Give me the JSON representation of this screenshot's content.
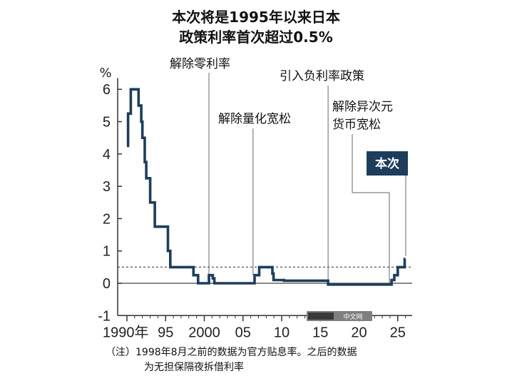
{
  "header": {
    "title_line1": "本次将是1995年以来日本",
    "title_line2": "政策利率首次超过0.5%"
  },
  "footnote": {
    "line1": "（注）1998年8月之前的数据为官方贴息率。之后的数据",
    "line2": "为无担保隔夜拆借利率"
  },
  "watermark": {
    "text": "中文网"
  },
  "colors": {
    "line": "#1e3d5c",
    "badge": "#1e3d5c",
    "axis": "#333333",
    "dotted": "#555555"
  },
  "chart_data": {
    "type": "line",
    "title": "本次将是1995年以来日本政策利率首次超过0.5%",
    "ylabel": "%",
    "xlabel": "",
    "ylim": [
      -1,
      6
    ],
    "xlim": [
      1989,
      2026
    ],
    "y_ticks": [
      "-1",
      "0",
      "1",
      "2",
      "3",
      "4",
      "5",
      "6"
    ],
    "x_ticks": [
      {
        "x": 1990,
        "label": "1990年"
      },
      {
        "x": 1995,
        "label": "95"
      },
      {
        "x": 2000,
        "label": "2000"
      },
      {
        "x": 2005,
        "label": "05"
      },
      {
        "x": 2010,
        "label": "10"
      },
      {
        "x": 2015,
        "label": "15"
      },
      {
        "x": 2020,
        "label": "20"
      },
      {
        "x": 2025,
        "label": "25"
      }
    ],
    "reference_line": {
      "y": 0.5,
      "style": "dotted"
    },
    "series": [
      {
        "points": [
          [
            1990.0,
            4.25
          ],
          [
            1990.15,
            4.25
          ],
          [
            1990.15,
            5.25
          ],
          [
            1990.5,
            5.25
          ],
          [
            1990.5,
            6.0
          ],
          [
            1991.5,
            6.0
          ],
          [
            1991.5,
            5.5
          ],
          [
            1991.85,
            5.5
          ],
          [
            1991.85,
            5.0
          ],
          [
            1992.0,
            5.0
          ],
          [
            1992.0,
            4.5
          ],
          [
            1992.3,
            4.5
          ],
          [
            1992.3,
            3.75
          ],
          [
            1992.5,
            3.75
          ],
          [
            1992.5,
            3.25
          ],
          [
            1993.0,
            3.25
          ],
          [
            1993.0,
            2.5
          ],
          [
            1993.6,
            2.5
          ],
          [
            1993.6,
            1.75
          ],
          [
            1995.3,
            1.75
          ],
          [
            1995.3,
            1.0
          ],
          [
            1995.6,
            1.0
          ],
          [
            1995.6,
            0.5
          ],
          [
            1998.6,
            0.5
          ],
          [
            1998.6,
            0.25
          ],
          [
            1999.2,
            0.25
          ],
          [
            1999.2,
            0.0
          ],
          [
            2000.6,
            0.0
          ],
          [
            2000.6,
            0.25
          ],
          [
            2001.1,
            0.25
          ],
          [
            2001.1,
            0.15
          ],
          [
            2001.3,
            0.15
          ],
          [
            2001.3,
            0.0
          ],
          [
            2006.5,
            0.0
          ],
          [
            2006.5,
            0.25
          ],
          [
            2007.1,
            0.25
          ],
          [
            2007.1,
            0.5
          ],
          [
            2008.8,
            0.5
          ],
          [
            2008.8,
            0.3
          ],
          [
            2008.95,
            0.3
          ],
          [
            2008.95,
            0.1
          ],
          [
            2010.3,
            0.1
          ],
          [
            2010.3,
            0.08
          ],
          [
            2016.0,
            0.08
          ],
          [
            2016.0,
            -0.04
          ],
          [
            2024.2,
            -0.04
          ],
          [
            2024.2,
            0.1
          ],
          [
            2024.55,
            0.1
          ],
          [
            2024.55,
            0.25
          ],
          [
            2025.0,
            0.25
          ],
          [
            2025.0,
            0.5
          ],
          [
            2025.9,
            0.5
          ],
          [
            2025.9,
            0.75
          ],
          [
            2026.0,
            0.75
          ]
        ]
      }
    ],
    "annotations": [
      {
        "label": "解除零利率",
        "x": 2000.6
      },
      {
        "label": "解除量化宽松",
        "x": 2006.3
      },
      {
        "label": "引入负利率政策",
        "x": 2016.0
      },
      {
        "label": "解除异次元",
        "label2": "货币宽松",
        "x": 2024.2
      },
      {
        "label": "本次",
        "x": 2025.9,
        "highlight": true
      }
    ]
  }
}
